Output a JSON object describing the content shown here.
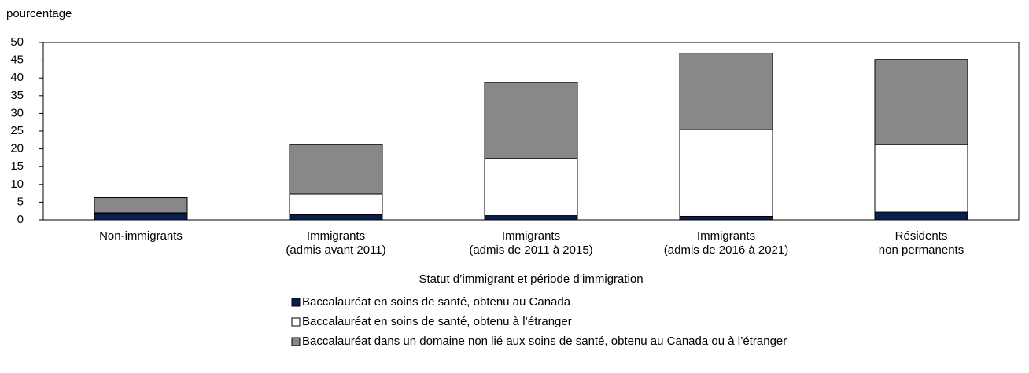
{
  "chart_data": {
    "type": "stacked_bar",
    "y_axis_label": "pourcentage",
    "x_axis_label": "Statut d’immigrant et période d’immigration",
    "categories": [
      "Non-immigrants",
      "Immigrants\n(admis avant 2011)",
      "Immigrants\n(admis de 2011 à 2015)",
      "Immigrants\n(admis de 2016 à 2021)",
      "Résidents\nnon permanents"
    ],
    "series": [
      {
        "name": "Baccalauréat en soins de santé, obtenu au Canada",
        "color": "#0b1f4f",
        "values": [
          1.8,
          1.5,
          1.2,
          1.0,
          2.2
        ]
      },
      {
        "name": "Baccalauréat en soins de santé, obtenu à l’étranger",
        "color": "#ffffff",
        "values": [
          0.2,
          5.8,
          16.1,
          24.4,
          19.0
        ]
      },
      {
        "name": "Baccalauréat dans un domaine non lié aux soins de santé, obtenu au Canada ou à l’étranger",
        "color": "#888888",
        "values": [
          4.3,
          13.9,
          21.4,
          21.6,
          24.0
        ]
      }
    ],
    "ylim": [
      0,
      50
    ],
    "yticks": [
      0,
      5,
      10,
      15,
      20,
      25,
      30,
      35,
      40,
      45,
      50
    ],
    "grid": false,
    "legend": "bottom"
  }
}
